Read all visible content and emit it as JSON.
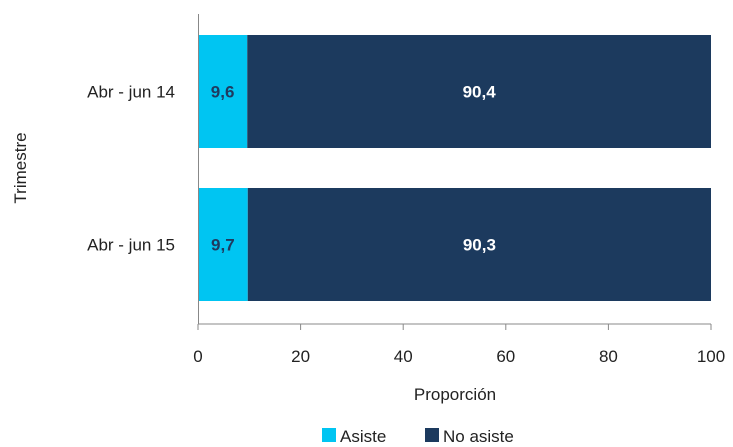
{
  "chart_data": {
    "type": "bar",
    "orientation": "horizontal",
    "stacked": true,
    "categories": [
      "Abr - jun 14",
      "Abr - jun 15"
    ],
    "series": [
      {
        "name": "Asiste",
        "values": [
          9.6,
          9.7
        ],
        "labels": [
          "9,6",
          "9,7"
        ],
        "color": "#00c5f2",
        "label_color": "#1f3a5f"
      },
      {
        "name": "No asiste",
        "values": [
          90.4,
          90.3
        ],
        "labels": [
          "90,4",
          "90,3"
        ],
        "color": "#1c3a5e",
        "label_color": "#ffffff"
      }
    ],
    "xlabel": "Proporción",
    "ylabel": "Trimestre",
    "xlim": [
      0,
      100
    ],
    "xticks": [
      0,
      20,
      40,
      60,
      80,
      100
    ],
    "grid": false,
    "legend_position": "bottom"
  }
}
